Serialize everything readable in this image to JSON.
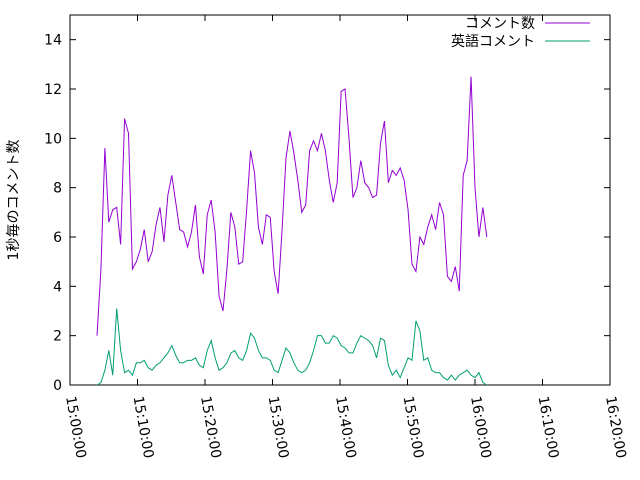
{
  "chart_data": {
    "type": "line",
    "title": "",
    "xlabel": "",
    "ylabel": "1秒毎のコメント数",
    "xlim": [
      "15:00:00",
      "16:20:00"
    ],
    "ylim": [
      0,
      15
    ],
    "x_ticks": [
      "15:00:00",
      "15:10:00",
      "15:20:00",
      "15:30:00",
      "15:40:00",
      "15:50:00",
      "16:00:00",
      "16:10:00",
      "16:20:00"
    ],
    "y_ticks": [
      "0",
      "2",
      "4",
      "6",
      "8",
      "10",
      "12",
      "14"
    ],
    "grid": false,
    "legend_position": "top-right",
    "series": [
      {
        "name": "コメント数",
        "color": "#9400d3",
        "points": [
          [
            "15:04:00",
            2.0
          ],
          [
            "15:04:35",
            4.7
          ],
          [
            "15:05:10",
            9.6
          ],
          [
            "15:05:45",
            6.6
          ],
          [
            "15:06:20",
            7.1
          ],
          [
            "15:06:55",
            7.2
          ],
          [
            "15:07:30",
            5.7
          ],
          [
            "15:08:05",
            10.8
          ],
          [
            "15:08:40",
            10.2
          ],
          [
            "15:09:15",
            4.7
          ],
          [
            "15:09:50",
            5.0
          ],
          [
            "15:10:25",
            5.5
          ],
          [
            "15:11:00",
            6.3
          ],
          [
            "15:11:35",
            5.0
          ],
          [
            "15:12:10",
            5.4
          ],
          [
            "15:12:45",
            6.5
          ],
          [
            "15:13:20",
            7.2
          ],
          [
            "15:13:55",
            5.8
          ],
          [
            "15:14:30",
            7.7
          ],
          [
            "15:15:05",
            8.5
          ],
          [
            "15:15:40",
            7.4
          ],
          [
            "15:16:15",
            6.3
          ],
          [
            "15:16:50",
            6.2
          ],
          [
            "15:17:25",
            5.6
          ],
          [
            "15:18:00",
            6.2
          ],
          [
            "15:18:35",
            7.3
          ],
          [
            "15:19:10",
            5.2
          ],
          [
            "15:19:45",
            4.5
          ],
          [
            "15:20:20",
            6.9
          ],
          [
            "15:20:55",
            7.5
          ],
          [
            "15:21:30",
            6.2
          ],
          [
            "15:22:05",
            3.6
          ],
          [
            "15:22:40",
            3.0
          ],
          [
            "15:23:15",
            4.7
          ],
          [
            "15:23:50",
            7.0
          ],
          [
            "15:24:25",
            6.4
          ],
          [
            "15:25:00",
            4.9
          ],
          [
            "15:25:35",
            5.0
          ],
          [
            "15:26:10",
            7.1
          ],
          [
            "15:26:45",
            9.5
          ],
          [
            "15:27:20",
            8.6
          ],
          [
            "15:27:55",
            6.4
          ],
          [
            "15:28:30",
            5.7
          ],
          [
            "15:29:05",
            6.9
          ],
          [
            "15:29:40",
            6.8
          ],
          [
            "15:30:15",
            4.6
          ],
          [
            "15:30:50",
            3.7
          ],
          [
            "15:31:25",
            6.3
          ],
          [
            "15:32:00",
            9.2
          ],
          [
            "15:32:35",
            10.3
          ],
          [
            "15:33:10",
            9.4
          ],
          [
            "15:33:45",
            8.3
          ],
          [
            "15:34:20",
            7.0
          ],
          [
            "15:34:55",
            7.3
          ],
          [
            "15:35:30",
            9.5
          ],
          [
            "15:36:05",
            9.9
          ],
          [
            "15:36:40",
            9.5
          ],
          [
            "15:37:15",
            10.2
          ],
          [
            "15:37:50",
            9.5
          ],
          [
            "15:38:25",
            8.3
          ],
          [
            "15:39:00",
            7.4
          ],
          [
            "15:39:35",
            8.2
          ],
          [
            "15:40:10",
            11.9
          ],
          [
            "15:40:45",
            12.0
          ],
          [
            "15:41:20",
            10.0
          ],
          [
            "15:41:55",
            7.6
          ],
          [
            "15:42:30",
            8.0
          ],
          [
            "15:43:05",
            9.1
          ],
          [
            "15:43:40",
            8.2
          ],
          [
            "15:44:15",
            8.0
          ],
          [
            "15:44:50",
            7.6
          ],
          [
            "15:45:25",
            7.7
          ],
          [
            "15:46:00",
            9.8
          ],
          [
            "15:46:35",
            10.7
          ],
          [
            "15:47:10",
            8.2
          ],
          [
            "15:47:45",
            8.7
          ],
          [
            "15:48:20",
            8.5
          ],
          [
            "15:48:55",
            8.8
          ],
          [
            "15:49:30",
            8.3
          ],
          [
            "15:50:05",
            7.1
          ],
          [
            "15:50:40",
            4.9
          ],
          [
            "15:51:15",
            4.6
          ],
          [
            "15:51:50",
            6.0
          ],
          [
            "15:52:25",
            5.7
          ],
          [
            "15:53:00",
            6.4
          ],
          [
            "15:53:35",
            6.9
          ],
          [
            "15:54:10",
            6.3
          ],
          [
            "15:54:45",
            7.4
          ],
          [
            "15:55:20",
            6.9
          ],
          [
            "15:55:55",
            4.4
          ],
          [
            "15:56:30",
            4.2
          ],
          [
            "15:57:05",
            4.8
          ],
          [
            "15:57:40",
            3.8
          ],
          [
            "15:58:15",
            8.5
          ],
          [
            "15:58:50",
            9.1
          ],
          [
            "15:59:25",
            12.5
          ],
          [
            "16:00:00",
            8.0
          ],
          [
            "16:00:35",
            6.0
          ],
          [
            "16:01:10",
            7.2
          ],
          [
            "16:01:45",
            6.0
          ]
        ]
      },
      {
        "name": "英語コメント",
        "color": "#009e73",
        "points": [
          [
            "15:04:00",
            0.0
          ],
          [
            "15:04:35",
            0.1
          ],
          [
            "15:05:10",
            0.6
          ],
          [
            "15:05:45",
            1.4
          ],
          [
            "15:06:20",
            0.4
          ],
          [
            "15:06:55",
            3.1
          ],
          [
            "15:07:30",
            1.4
          ],
          [
            "15:08:05",
            0.5
          ],
          [
            "15:08:40",
            0.6
          ],
          [
            "15:09:15",
            0.4
          ],
          [
            "15:09:50",
            0.9
          ],
          [
            "15:10:25",
            0.9
          ],
          [
            "15:11:00",
            1.0
          ],
          [
            "15:11:35",
            0.7
          ],
          [
            "15:12:10",
            0.6
          ],
          [
            "15:12:45",
            0.8
          ],
          [
            "15:13:20",
            0.9
          ],
          [
            "15:13:55",
            1.1
          ],
          [
            "15:14:30",
            1.3
          ],
          [
            "15:15:05",
            1.6
          ],
          [
            "15:15:40",
            1.2
          ],
          [
            "15:16:15",
            0.9
          ],
          [
            "15:16:50",
            0.9
          ],
          [
            "15:17:25",
            1.0
          ],
          [
            "15:18:00",
            1.0
          ],
          [
            "15:18:35",
            1.1
          ],
          [
            "15:19:10",
            0.8
          ],
          [
            "15:19:45",
            0.7
          ],
          [
            "15:20:20",
            1.4
          ],
          [
            "15:20:55",
            1.8
          ],
          [
            "15:21:30",
            1.1
          ],
          [
            "15:22:05",
            0.6
          ],
          [
            "15:22:40",
            0.7
          ],
          [
            "15:23:15",
            0.9
          ],
          [
            "15:23:50",
            1.3
          ],
          [
            "15:24:25",
            1.4
          ],
          [
            "15:25:00",
            1.1
          ],
          [
            "15:25:35",
            1.0
          ],
          [
            "15:26:10",
            1.4
          ],
          [
            "15:26:45",
            2.1
          ],
          [
            "15:27:20",
            1.9
          ],
          [
            "15:27:55",
            1.4
          ],
          [
            "15:28:30",
            1.1
          ],
          [
            "15:29:05",
            1.1
          ],
          [
            "15:29:40",
            1.0
          ],
          [
            "15:30:15",
            0.6
          ],
          [
            "15:30:50",
            0.5
          ],
          [
            "15:31:25",
            1.0
          ],
          [
            "15:32:00",
            1.5
          ],
          [
            "15:32:35",
            1.3
          ],
          [
            "15:33:10",
            0.9
          ],
          [
            "15:33:45",
            0.6
          ],
          [
            "15:34:20",
            0.5
          ],
          [
            "15:34:55",
            0.6
          ],
          [
            "15:35:30",
            0.9
          ],
          [
            "15:36:05",
            1.4
          ],
          [
            "15:36:40",
            2.0
          ],
          [
            "15:37:15",
            2.0
          ],
          [
            "15:37:50",
            1.7
          ],
          [
            "15:38:25",
            1.7
          ],
          [
            "15:39:00",
            2.0
          ],
          [
            "15:39:35",
            1.9
          ],
          [
            "15:40:10",
            1.6
          ],
          [
            "15:40:45",
            1.5
          ],
          [
            "15:41:20",
            1.3
          ],
          [
            "15:41:55",
            1.3
          ],
          [
            "15:42:30",
            1.7
          ],
          [
            "15:43:05",
            2.0
          ],
          [
            "15:43:40",
            1.9
          ],
          [
            "15:44:15",
            1.8
          ],
          [
            "15:44:50",
            1.6
          ],
          [
            "15:45:25",
            1.1
          ],
          [
            "15:46:00",
            1.9
          ],
          [
            "15:46:35",
            1.8
          ],
          [
            "15:47:10",
            0.8
          ],
          [
            "15:47:45",
            0.4
          ],
          [
            "15:48:20",
            0.6
          ],
          [
            "15:48:55",
            0.3
          ],
          [
            "15:49:30",
            0.7
          ],
          [
            "15:50:05",
            1.1
          ],
          [
            "15:50:40",
            1.0
          ],
          [
            "15:51:15",
            2.6
          ],
          [
            "15:51:50",
            2.2
          ],
          [
            "15:52:25",
            1.0
          ],
          [
            "15:53:00",
            1.1
          ],
          [
            "15:53:35",
            0.6
          ],
          [
            "15:54:10",
            0.5
          ],
          [
            "15:54:45",
            0.5
          ],
          [
            "15:55:20",
            0.3
          ],
          [
            "15:55:55",
            0.2
          ],
          [
            "15:56:30",
            0.4
          ],
          [
            "15:57:05",
            0.2
          ],
          [
            "15:57:40",
            0.4
          ],
          [
            "15:58:15",
            0.5
          ],
          [
            "15:58:50",
            0.6
          ],
          [
            "15:59:25",
            0.4
          ],
          [
            "16:00:00",
            0.3
          ],
          [
            "16:00:35",
            0.5
          ],
          [
            "16:01:10",
            0.1
          ],
          [
            "16:01:45",
            0.0
          ]
        ]
      }
    ]
  }
}
